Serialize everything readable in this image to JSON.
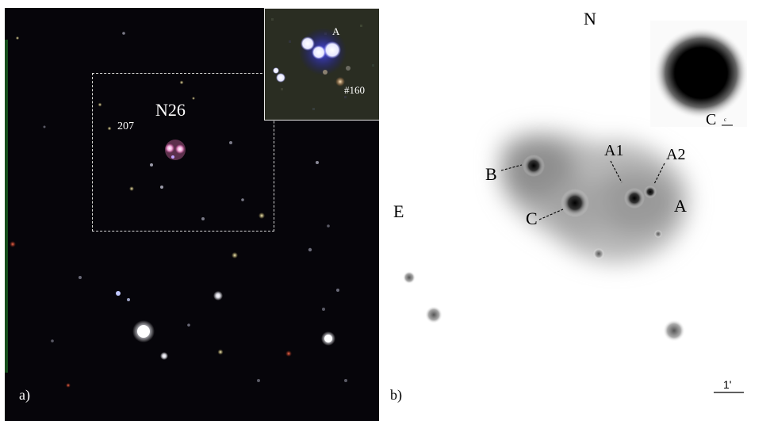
{
  "panel_a": {
    "tag": "a)",
    "field_label": "N26",
    "star_label": "207",
    "inset": {
      "component_label": "A",
      "star_label": "#160"
    }
  },
  "panel_b": {
    "tag": "b)",
    "compass_north": "N",
    "compass_east": "E",
    "labels": {
      "A": "A",
      "A1": "A1",
      "A2": "A2",
      "B": "B",
      "C": "C"
    },
    "inset_label": "C",
    "inset_scale_text": "c",
    "scale_bar_label": "1'"
  }
}
